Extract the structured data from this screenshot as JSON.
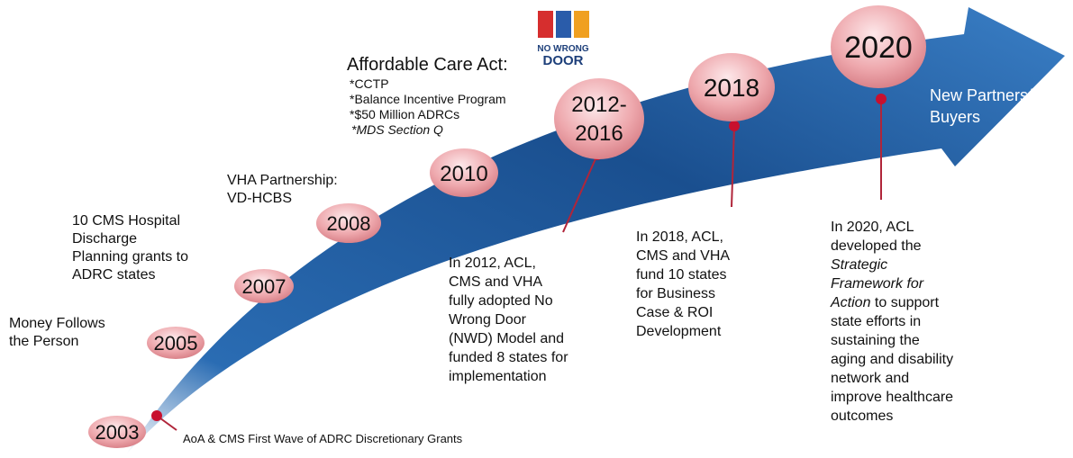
{
  "logo": {
    "line1": "NO WRONG",
    "line2": "DOOR"
  },
  "arrow_label": [
    "New Partners/",
    "Buyers"
  ],
  "milestones": [
    {
      "year": [
        "2003"
      ],
      "text": [
        "AoA & CMS First Wave of ADRC Discretionary Grants"
      ]
    },
    {
      "year": [
        "2005"
      ],
      "text": [
        "Money Follows",
        "the Person"
      ]
    },
    {
      "year": [
        "2007"
      ],
      "text": [
        "10 CMS Hospital",
        "Discharge",
        "Planning grants to",
        "ADRC states"
      ]
    },
    {
      "year": [
        "2008"
      ],
      "text": [
        "VHA Partnership:",
        "VD-HCBS"
      ]
    },
    {
      "year": [
        "2010"
      ],
      "title": "Affordable Care Act:",
      "text": [
        "*CCTP",
        "*Balance Incentive Program",
        "*$50 Million ADRCs",
        "*MDS Section Q"
      ]
    },
    {
      "year": [
        "2012-",
        "2016"
      ],
      "text": [
        "In 2012, ACL,",
        "CMS and VHA",
        "fully adopted No",
        "Wrong Door",
        "(NWD) Model and",
        "funded 8 states for",
        "implementation"
      ]
    },
    {
      "year": [
        "2018"
      ],
      "text": [
        "In 2018, ACL,",
        "CMS and VHA",
        "fund 10 states",
        "for Business",
        "Case & ROI",
        "Development"
      ]
    },
    {
      "year": [
        "2020"
      ],
      "text": [
        "In 2020, ACL",
        "developed the",
        "Strategic",
        "Framework for",
        "Action",
        " to support",
        "state efforts in",
        "sustaining the",
        "aging and disability",
        "network and",
        "improve healthcare",
        "outcomes"
      ]
    }
  ]
}
